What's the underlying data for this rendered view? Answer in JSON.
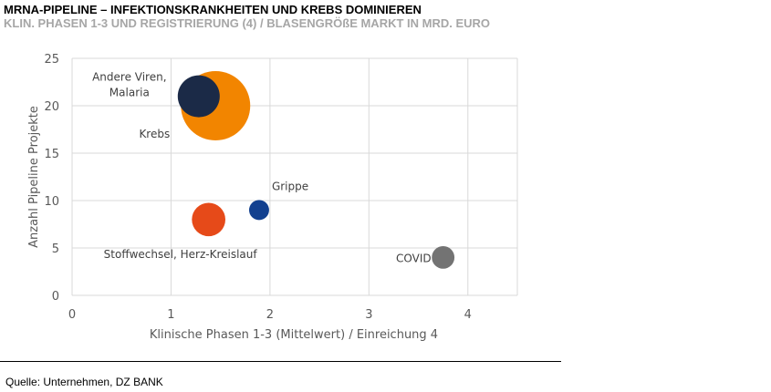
{
  "header": {
    "title": "MRNA-PIPELINE – INFEKTIONSKRANKHEITEN UND KREBS DOMINIEREN",
    "subtitle": "KLIN. PHASEN 1-3 UND REGISTRIERUNG (4) / BLASENGRÖßE MARKT IN MRD. EURO"
  },
  "footer": {
    "source": "Quelle: Unternehmen, DZ BANK"
  },
  "chart_data": {
    "type": "scatter",
    "title": "MRNA-PIPELINE – INFEKTIONSKRANKHEITEN UND KREBS DOMINIEREN",
    "subtitle": "KLIN. PHASEN 1-3 UND REGISTRIERUNG (4) / BLASENGRÖßE MARKT IN MRD. EURO",
    "xlabel": "Klinische Phasen 1-3  (Mittelwert) / Einreichung 4",
    "ylabel": "Anzahl Pipeline Projekte",
    "xlim": [
      0,
      4.5
    ],
    "ylim": [
      0,
      25
    ],
    "xticks": [
      0,
      1,
      2,
      3,
      4
    ],
    "yticks": [
      0,
      5,
      10,
      15,
      20,
      25
    ],
    "grid": true,
    "bubble_size_meaning": "Markt in Mrd. Euro",
    "points": [
      {
        "label": "Krebs",
        "x": 1.45,
        "y": 20,
        "size": 30,
        "color": "#f28500",
        "label_anchor": "end"
      },
      {
        "label": "Andere Viren, Malaria",
        "label_lines": [
          "Andere Viren,",
          "Malaria"
        ],
        "x": 1.28,
        "y": 21,
        "size": 11,
        "color": "#1b2a47",
        "label_anchor": "middle"
      },
      {
        "label": "Stoffwechsel, Herz-Kreislauf",
        "x": 1.38,
        "y": 8,
        "size": 7,
        "color": "#e64a19",
        "label_anchor": "middle"
      },
      {
        "label": "Grippe",
        "x": 1.89,
        "y": 9,
        "size": 2.5,
        "color": "#12408f",
        "label_anchor": "start"
      },
      {
        "label": "COVID",
        "x": 3.75,
        "y": 4,
        "size": 3.2,
        "color": "#737373",
        "label_anchor": "end"
      }
    ]
  }
}
